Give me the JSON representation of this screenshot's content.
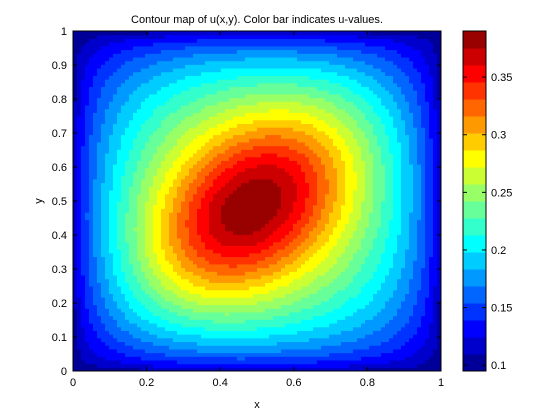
{
  "chart_data": {
    "type": "heatmap",
    "subtype": "filled-contour",
    "title": "Contour map of u(x,y).  Color bar indicates u-values.",
    "xlabel": "x",
    "ylabel": "y",
    "xlim": [
      0,
      1
    ],
    "ylim": [
      0,
      1
    ],
    "x_ticks": [
      0,
      0.2,
      0.4,
      0.6,
      0.8,
      1
    ],
    "x_tick_labels": [
      "0",
      "0.2",
      "0.4",
      "0.6",
      "0.8",
      "1"
    ],
    "y_ticks": [
      0,
      0.1,
      0.2,
      0.3,
      0.4,
      0.5,
      0.6,
      0.7,
      0.8,
      0.9,
      1
    ],
    "y_tick_labels": [
      "0",
      "0.1",
      "0.2",
      "0.3",
      "0.4",
      "0.5",
      "0.6",
      "0.7",
      "0.8",
      "0.9",
      "1"
    ],
    "grid": false,
    "colormap": "jet",
    "colorbar": {
      "clim": [
        0.095,
        0.39
      ],
      "levels": 20,
      "ticks": [
        0.1,
        0.15,
        0.2,
        0.25,
        0.3,
        0.35
      ],
      "tick_labels": [
        "0.1",
        "0.15",
        "0.2",
        "0.25",
        "0.3",
        "0.35"
      ],
      "placement": "right"
    },
    "field": {
      "boundary_value": 0.095,
      "max_value": 0.39,
      "max_location": [
        0.47,
        0.47
      ],
      "inner_contour_region": {
        "x": [
          0.35,
          0.63
        ],
        "y": [
          0.28,
          0.7
        ]
      }
    }
  }
}
